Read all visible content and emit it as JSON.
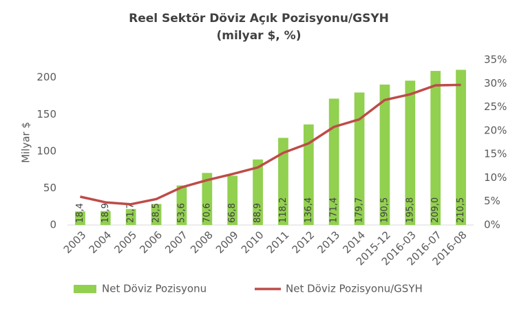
{
  "chart_data": {
    "type": "combo",
    "title": "Reel Sektör Döviz Açık Pozisyonu/GSYH",
    "subtitle": "(milyar $, %)",
    "y_label": "Milyar $",
    "categories": [
      "2003",
      "2004",
      "2005",
      "2006",
      "2007",
      "2008",
      "2009",
      "2010",
      "2011",
      "2012",
      "2013",
      "2014",
      "2015-12",
      "2016-03",
      "2016-07",
      "2016-08"
    ],
    "series": [
      {
        "name": "Net Döviz Pozisyonu",
        "type": "bar",
        "color": "#92d050",
        "values": [
          18.4,
          18.9,
          21.7,
          28.5,
          53.6,
          70.6,
          66.8,
          88.9,
          118.2,
          136.4,
          171.4,
          179.7,
          190.5,
          195.8,
          209.0,
          210.5
        ],
        "value_labels": [
          "18,4",
          "18,9",
          "21,7",
          "28,5",
          "53,6",
          "70,6",
          "66,8",
          "88,9",
          "118,2",
          "136,4",
          "171,4",
          "179,7",
          "190,5",
          "195,8",
          "209,0",
          "210,5"
        ]
      },
      {
        "name": "Net Döviz Pozisyonu/GSYH",
        "type": "line",
        "axis": "y2",
        "color": "#be4b48",
        "values": [
          6.0,
          4.8,
          4.4,
          5.5,
          8.0,
          9.5,
          10.8,
          12.2,
          15.3,
          17.3,
          20.8,
          22.4,
          26.5,
          27.7,
          29.6,
          29.7
        ]
      }
    ],
    "ylim": [
      0,
      224
    ],
    "yticks": [
      0,
      50,
      100,
      150,
      200
    ],
    "y2lim": [
      0,
      35
    ],
    "y2ticks": [
      {
        "value": 0,
        "label": "0%"
      },
      {
        "value": 5,
        "label": "5%"
      },
      {
        "value": 10,
        "label": "10%"
      },
      {
        "value": 15,
        "label": "15%"
      },
      {
        "value": 20,
        "label": "20%"
      },
      {
        "value": 25,
        "label": "25%"
      },
      {
        "value": 30,
        "label": "30%"
      },
      {
        "value": 35,
        "label": "35%"
      }
    ],
    "legend": "bottom"
  }
}
